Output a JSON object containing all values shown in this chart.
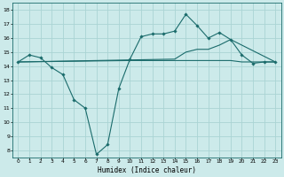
{
  "xlabel": "Humidex (Indice chaleur)",
  "bg_color": "#cceaea",
  "grid_color": "#aad4d4",
  "line_color": "#1a6b6b",
  "xlim": [
    -0.5,
    23.5
  ],
  "ylim": [
    7.5,
    18.5
  ],
  "yticks": [
    8,
    9,
    10,
    11,
    12,
    13,
    14,
    15,
    16,
    17,
    18
  ],
  "xticks": [
    0,
    1,
    2,
    3,
    4,
    5,
    6,
    7,
    8,
    9,
    10,
    11,
    12,
    13,
    14,
    15,
    16,
    17,
    18,
    19,
    20,
    21,
    22,
    23
  ],
  "series0": [
    14.3,
    14.8,
    14.6,
    13.9,
    13.4,
    11.6,
    11.0,
    7.7,
    8.4,
    12.4,
    14.5,
    16.1,
    16.3,
    16.3,
    16.5,
    17.7,
    16.9,
    16.0,
    16.4,
    15.9,
    14.8,
    14.2,
    14.3,
    14.3
  ],
  "series1_x": [
    0,
    14,
    15,
    16,
    17,
    18,
    19,
    23
  ],
  "series1_y": [
    14.3,
    14.5,
    15.0,
    15.2,
    15.2,
    15.5,
    15.9,
    14.3
  ],
  "series2_x": [
    0,
    10,
    11,
    12,
    13,
    14,
    15,
    16,
    17,
    18,
    19,
    20,
    21,
    22,
    23
  ],
  "series2_y": [
    14.3,
    14.4,
    14.4,
    14.4,
    14.4,
    14.4,
    14.4,
    14.4,
    14.4,
    14.4,
    14.4,
    14.3,
    14.3,
    14.3,
    14.3
  ]
}
